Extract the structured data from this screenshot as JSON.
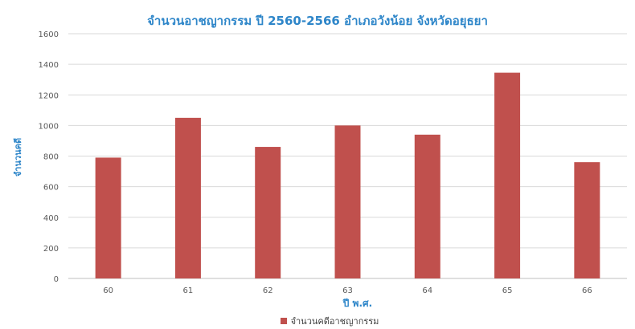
{
  "chart_data": {
    "type": "bar",
    "title": "จำนวนอาชญากรรม ปี 2560-2566 อำเภอวังน้อย จังหวัดอยุธยา",
    "xlabel": "ปี พ.ศ.",
    "ylabel": "จำนวนคดี",
    "categories": [
      "60",
      "61",
      "62",
      "63",
      "64",
      "65",
      "66"
    ],
    "series": [
      {
        "name": "จำนวนคดีอาชญากรรม",
        "values": [
          790,
          1050,
          860,
          1000,
          940,
          1345,
          760
        ],
        "color": "#c0504d"
      }
    ],
    "ylim": [
      0,
      1600
    ],
    "yticks": [
      0,
      200,
      400,
      600,
      800,
      1000,
      1200,
      1400,
      1600
    ],
    "grid": true,
    "legend_position": "bottom"
  }
}
